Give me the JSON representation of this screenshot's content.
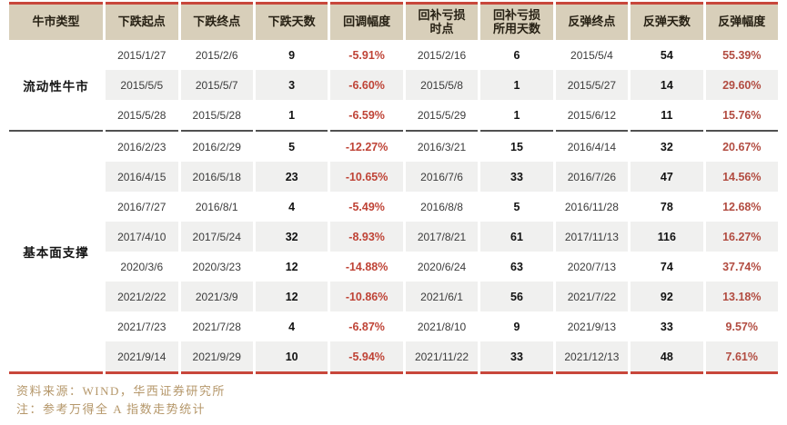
{
  "table": {
    "headers": [
      "牛市类型",
      "下跌起点",
      "下跌终点",
      "下跌天数",
      "回调幅度",
      "回补亏损\n时点",
      "回补亏损\n所用天数",
      "反弹终点",
      "反弹天数",
      "反弹幅度"
    ],
    "groups": [
      {
        "label": "流动性牛市",
        "rows": [
          [
            "2015/1/27",
            "2015/2/6",
            "9",
            "-5.91%",
            "2015/2/16",
            "6",
            "2015/5/4",
            "54",
            "55.39%"
          ],
          [
            "2015/5/5",
            "2015/5/7",
            "3",
            "-6.60%",
            "2015/5/8",
            "1",
            "2015/5/27",
            "14",
            "29.60%"
          ],
          [
            "2015/5/28",
            "2015/5/28",
            "1",
            "-6.59%",
            "2015/5/29",
            "1",
            "2015/6/12",
            "11",
            "15.76%"
          ]
        ]
      },
      {
        "label": "基本面支撑",
        "rows": [
          [
            "2016/2/23",
            "2016/2/29",
            "5",
            "-12.27%",
            "2016/3/21",
            "15",
            "2016/4/14",
            "32",
            "20.67%"
          ],
          [
            "2016/4/15",
            "2016/5/18",
            "23",
            "-10.65%",
            "2016/7/6",
            "33",
            "2016/7/26",
            "47",
            "14.56%"
          ],
          [
            "2016/7/27",
            "2016/8/1",
            "4",
            "-5.49%",
            "2016/8/8",
            "5",
            "2016/11/28",
            "78",
            "12.68%"
          ],
          [
            "2017/4/10",
            "2017/5/24",
            "32",
            "-8.93%",
            "2017/8/21",
            "61",
            "2017/11/13",
            "116",
            "16.27%"
          ],
          [
            "2020/3/6",
            "2020/3/23",
            "12",
            "-14.88%",
            "2020/6/24",
            "63",
            "2020/7/13",
            "74",
            "37.74%"
          ],
          [
            "2021/2/22",
            "2021/3/9",
            "12",
            "-10.86%",
            "2021/6/1",
            "56",
            "2021/7/22",
            "92",
            "13.18%"
          ],
          [
            "2021/7/23",
            "2021/7/28",
            "4",
            "-6.87%",
            "2021/8/10",
            "9",
            "2021/9/13",
            "33",
            "9.57%"
          ],
          [
            "2021/9/14",
            "2021/9/29",
            "10",
            "-5.94%",
            "2021/11/22",
            "33",
            "2021/12/13",
            "48",
            "7.61%"
          ]
        ]
      }
    ]
  },
  "footer": {
    "source": "资料来源：WIND，华西证券研究所",
    "note": "注：参考万得全 A 指数走势统计"
  },
  "colors": {
    "accent_red_border": "#c8473b",
    "pullback_pct_red": "#bf4336",
    "rebound_pct_red": "#b24c41",
    "header_bg_beige": "#d8cfba",
    "stripe_gray": "#f0f0ef",
    "footer_tan": "#b5976a",
    "group_divider_dark": "#515151"
  }
}
